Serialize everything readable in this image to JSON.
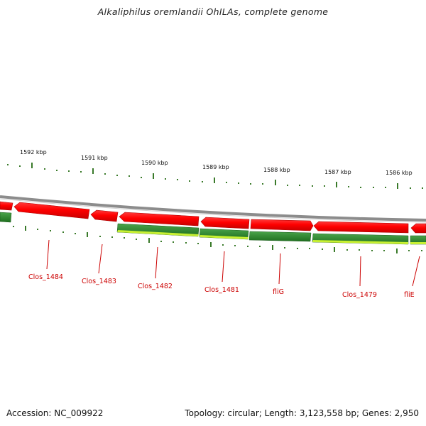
{
  "map": {
    "title": "Alkaliphilus oremlandii OhILAs, complete genome",
    "accession": "Accession: NC_009922",
    "topology": "Topology: circular; Length: 3,123,558 bp; Genes: 2,950"
  },
  "ruler": {
    "labels": [
      "1592 kbp",
      "1591 kbp",
      "1590 kbp",
      "1589 kbp",
      "1588 kbp",
      "1587 kbp",
      "1586 kbp"
    ]
  },
  "genes": [
    {
      "name": "Clos_1484"
    },
    {
      "name": "Clos_1483"
    },
    {
      "name": "Clos_1482"
    },
    {
      "name": "Clos_1481"
    },
    {
      "name": "fliG"
    },
    {
      "name": "Clos_1479"
    },
    {
      "name": "fliE"
    }
  ],
  "colors": {
    "backbone": "#8c8c8c",
    "reverse_strand": "#ff0000",
    "forward_strand": "#2d8a2d",
    "gc_band": "#c8f032",
    "tick": "#3a7a2a",
    "label": "#cc0000"
  }
}
